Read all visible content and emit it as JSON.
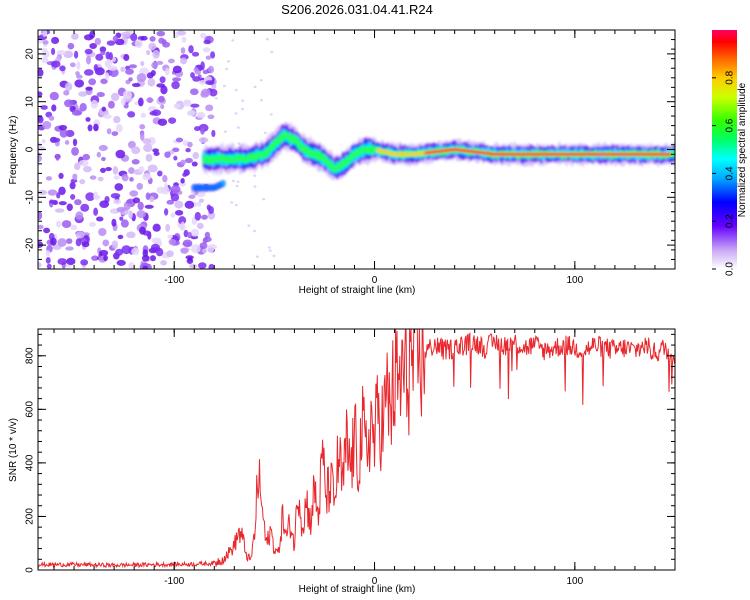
{
  "figure": {
    "title": "S206.2026.031.04.41.R24"
  },
  "chart_data": [
    {
      "type": "heatmap",
      "title": "S206.2026.031.04.41.R24",
      "xlabel": "Height of straight line (km)",
      "ylabel": "Frequency (Hz)",
      "xlim": [
        -168,
        150
      ],
      "ylim": [
        -25,
        25
      ],
      "x_ticks": [
        -100,
        0,
        100
      ],
      "y_ticks": [
        -20,
        -10,
        0,
        10,
        20
      ],
      "colorbar": {
        "label": "Normalized spectral amplitude",
        "range": [
          0,
          1
        ],
        "ticks": [
          0.0,
          0.2,
          0.4,
          0.6,
          0.8
        ]
      },
      "noise_region_x": [
        -168,
        -80
      ],
      "signal_track": {
        "description_points_x": [
          -85,
          -75,
          -65,
          -55,
          -45,
          -40,
          -35,
          -25,
          -20,
          -15,
          -10,
          -5,
          0,
          10,
          20,
          40,
          60,
          80,
          100,
          120,
          150
        ],
        "frequency_hz": [
          -2,
          -2,
          -2,
          -1,
          3,
          2,
          0,
          -2,
          -4,
          -3,
          -1,
          0,
          0,
          -1,
          -1,
          0,
          -1,
          -1,
          -1,
          -1,
          -1
        ],
        "branch_points_x": [
          -90,
          -85,
          -80,
          -75
        ],
        "branch_frequency_hz": [
          -8,
          -8,
          -8,
          -7
        ]
      }
    },
    {
      "type": "line",
      "xlabel": "Height of straight line (km)",
      "ylabel": "SNR (10 * v/v)",
      "xlim": [
        -168,
        150
      ],
      "ylim": [
        0,
        900
      ],
      "x_ticks": [
        -100,
        0,
        100
      ],
      "y_ticks": [
        0,
        200,
        400,
        600,
        800
      ],
      "series": [
        {
          "name": "SNR",
          "color": "#e8282d",
          "x": [
            -168,
            -150,
            -130,
            -110,
            -90,
            -80,
            -75,
            -70,
            -68,
            -66,
            -64,
            -62,
            -60,
            -58,
            -56,
            -54,
            -52,
            -50,
            -48,
            -46,
            -44,
            -42,
            -40,
            -38,
            -36,
            -34,
            -32,
            -30,
            -28,
            -26,
            -24,
            -22,
            -20,
            -18,
            -16,
            -14,
            -12,
            -10,
            -8,
            -6,
            -4,
            -2,
            0,
            2,
            4,
            6,
            8,
            10,
            12,
            14,
            16,
            18,
            20,
            22,
            24,
            26,
            28,
            30,
            35,
            40,
            45,
            50,
            55,
            60,
            65,
            70,
            75,
            80,
            85,
            90,
            95,
            100,
            105,
            110,
            115,
            120,
            125,
            130,
            135,
            140,
            145,
            150
          ],
          "values": [
            20,
            20,
            18,
            20,
            22,
            25,
            45,
            90,
            140,
            120,
            60,
            30,
            120,
            360,
            220,
            90,
            150,
            80,
            60,
            200,
            120,
            180,
            90,
            320,
            160,
            260,
            180,
            300,
            200,
            420,
            270,
            330,
            250,
            430,
            310,
            460,
            380,
            480,
            410,
            520,
            430,
            560,
            480,
            600,
            540,
            640,
            600,
            700,
            680,
            740,
            720,
            780,
            790,
            800,
            810,
            820,
            830,
            840,
            820,
            830,
            840,
            850,
            830,
            850,
            840,
            850,
            830,
            840,
            820,
            830,
            840,
            830,
            820,
            840,
            830,
            820,
            830,
            820,
            840,
            810,
            830,
            800
          ]
        }
      ]
    }
  ]
}
